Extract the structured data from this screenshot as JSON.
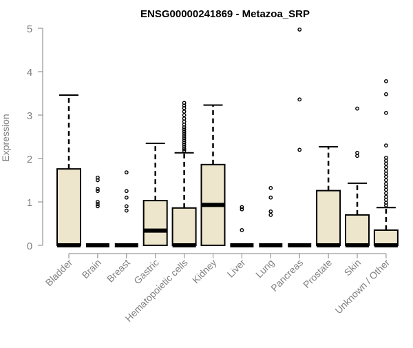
{
  "chart_data": {
    "type": "boxplot",
    "title": "ENSG00000241869 - Metazoa_SRP",
    "xlabel": "",
    "ylabel": "Expression",
    "ylim": [
      0,
      5
    ],
    "yticks": [
      0,
      1,
      2,
      3,
      4,
      5
    ],
    "colors": {
      "box_fill": "#ede6cc",
      "box_stroke": "#000000",
      "axis": "#808080",
      "tick_label": "#808080",
      "title": "#000000"
    },
    "categories": [
      "Bladder",
      "Brain",
      "Breast",
      "Gastric",
      "Hematopoietic cells",
      "Kidney",
      "Liver",
      "Lung",
      "Pancreas",
      "Prostate",
      "Skin",
      "Unknown / Other"
    ],
    "boxes": [
      {
        "label": "Bladder",
        "q1": 0,
        "median": 0,
        "q3": 1.76,
        "whisker_low": 0,
        "whisker_high": 3.46,
        "outliers": []
      },
      {
        "label": "Brain",
        "q1": 0,
        "median": 0,
        "q3": 0,
        "whisker_low": 0,
        "whisker_high": 0,
        "outliers": [
          0.9,
          0.95,
          1.0,
          1.25,
          1.3,
          1.5,
          1.56
        ]
      },
      {
        "label": "Breast",
        "q1": 0,
        "median": 0,
        "q3": 0,
        "whisker_low": 0,
        "whisker_high": 0,
        "outliers": [
          0.8,
          0.9,
          1.1,
          1.25,
          1.68
        ]
      },
      {
        "label": "Gastric",
        "q1": 0,
        "median": 0.34,
        "q3": 1.03,
        "whisker_low": 0,
        "whisker_high": 2.35,
        "outliers": []
      },
      {
        "label": "Hematopoietic cells",
        "q1": 0,
        "median": 0,
        "q3": 0.86,
        "whisker_low": 0,
        "whisker_high": 2.13,
        "outliers": [
          2.18,
          2.22,
          2.27,
          2.32,
          2.37,
          2.42,
          2.47,
          2.52,
          2.57,
          2.62,
          2.67,
          2.72,
          2.78,
          2.85,
          2.92,
          3.0,
          3.08,
          3.16,
          3.22,
          3.28
        ]
      },
      {
        "label": "Kidney",
        "q1": 0,
        "median": 0.93,
        "q3": 1.86,
        "whisker_low": 0,
        "whisker_high": 3.23,
        "outliers": []
      },
      {
        "label": "Liver",
        "q1": 0,
        "median": 0,
        "q3": 0,
        "whisker_low": 0,
        "whisker_high": 0,
        "outliers": [
          0.35,
          0.83,
          0.88
        ]
      },
      {
        "label": "Lung",
        "q1": 0,
        "median": 0,
        "q3": 0,
        "whisker_low": 0,
        "whisker_high": 0,
        "outliers": [
          0.7,
          0.78,
          1.1,
          1.32
        ]
      },
      {
        "label": "Pancreas",
        "q1": 0,
        "median": 0,
        "q3": 0,
        "whisker_low": 0,
        "whisker_high": 0,
        "outliers": [
          2.2,
          3.36,
          4.97
        ]
      },
      {
        "label": "Prostate",
        "q1": 0,
        "median": 0,
        "q3": 1.26,
        "whisker_low": 0,
        "whisker_high": 2.27,
        "outliers": []
      },
      {
        "label": "Skin",
        "q1": 0,
        "median": 0,
        "q3": 0.7,
        "whisker_low": 0,
        "whisker_high": 1.43,
        "outliers": [
          2.06,
          2.13,
          3.15
        ]
      },
      {
        "label": "Unknown / Other",
        "q1": 0,
        "median": 0,
        "q3": 0.35,
        "whisker_low": 0,
        "whisker_high": 0.87,
        "outliers": [
          0.92,
          0.98,
          1.05,
          1.12,
          1.2,
          1.28,
          1.35,
          1.42,
          1.5,
          1.58,
          1.65,
          1.72,
          1.8,
          1.88,
          1.95,
          2.02,
          2.3,
          3.05,
          3.48,
          3.78
        ]
      }
    ]
  }
}
